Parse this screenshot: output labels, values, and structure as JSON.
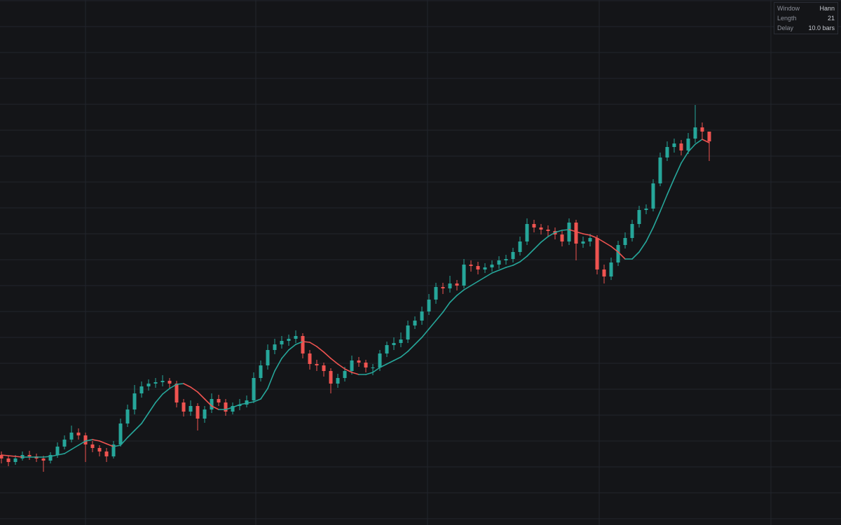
{
  "chart_data": {
    "type": "candlestick",
    "xlim": [
      -0.2,
      119.8
    ],
    "ylim": [
      0,
      750
    ],
    "xticks": [
      12,
      36.3,
      60.8,
      85.3,
      109.8
    ],
    "yticks": [
      9,
      46,
      83,
      120,
      157,
      194,
      231,
      268,
      305,
      342,
      379,
      416,
      453,
      490,
      527,
      564,
      601,
      638,
      675,
      712,
      749
    ],
    "grid": true,
    "grid_color": "#22252c",
    "up_color": "#26a69a",
    "down_color": "#ef5350",
    "open": [
      100,
      95,
      90,
      95,
      100,
      98,
      95,
      92,
      100,
      112,
      122,
      132,
      128,
      115,
      110,
      105,
      98,
      115,
      145,
      165,
      188,
      198,
      202,
      204,
      206,
      202,
      175,
      162,
      170,
      152,
      165,
      180,
      175,
      162,
      170,
      172,
      178,
      210,
      228,
      250,
      258,
      263,
      266,
      270,
      245,
      230,
      228,
      220,
      202,
      210,
      220,
      235,
      232,
      225,
      225,
      245,
      257,
      260,
      265,
      285,
      292,
      305,
      322,
      340,
      338,
      345,
      342,
      372,
      370,
      365,
      368,
      372,
      378,
      380,
      390,
      405,
      430,
      425,
      422,
      420,
      415,
      405,
      432,
      402,
      405,
      410,
      365,
      355,
      375,
      400,
      410,
      430,
      450,
      452,
      488,
      525,
      540,
      545,
      535,
      552,
      568,
      562
    ],
    "high": [
      105,
      99,
      100,
      105,
      106,
      102,
      99,
      104,
      118,
      128,
      142,
      138,
      132,
      120,
      114,
      110,
      120,
      152,
      172,
      200,
      205,
      208,
      210,
      214,
      210,
      206,
      180,
      178,
      174,
      170,
      188,
      186,
      180,
      175,
      180,
      185,
      218,
      235,
      258,
      266,
      270,
      272,
      278,
      274,
      250,
      236,
      232,
      224,
      216,
      226,
      242,
      240,
      236,
      230,
      250,
      262,
      268,
      275,
      292,
      298,
      312,
      330,
      346,
      346,
      356,
      350,
      380,
      378,
      376,
      374,
      378,
      384,
      386,
      396,
      412,
      438,
      436,
      430,
      428,
      425,
      420,
      438,
      436,
      412,
      416,
      414,
      372,
      382,
      406,
      418,
      436,
      456,
      458,
      494,
      532,
      548,
      552,
      550,
      560,
      600,
      575,
      560
    ],
    "low": [
      88,
      84,
      86,
      92,
      93,
      90,
      76,
      88,
      96,
      108,
      118,
      122,
      90,
      104,
      98,
      90,
      95,
      112,
      140,
      158,
      182,
      192,
      196,
      198,
      196,
      168,
      155,
      156,
      135,
      146,
      160,
      170,
      156,
      158,
      164,
      168,
      174,
      205,
      222,
      244,
      252,
      256,
      260,
      238,
      222,
      220,
      212,
      188,
      196,
      205,
      215,
      226,
      218,
      214,
      220,
      240,
      250,
      254,
      260,
      280,
      286,
      300,
      316,
      330,
      332,
      335,
      338,
      362,
      358,
      360,
      362,
      366,
      372,
      375,
      385,
      400,
      418,
      415,
      412,
      408,
      398,
      400,
      378,
      396,
      398,
      358,
      345,
      350,
      370,
      395,
      405,
      425,
      444,
      448,
      484,
      520,
      532,
      528,
      530,
      546,
      552,
      520
    ],
    "close": [
      95,
      90,
      95,
      100,
      98,
      95,
      92,
      100,
      112,
      122,
      132,
      128,
      115,
      110,
      105,
      98,
      115,
      145,
      165,
      188,
      198,
      202,
      204,
      206,
      202,
      175,
      162,
      170,
      152,
      165,
      180,
      175,
      162,
      170,
      172,
      178,
      210,
      228,
      250,
      258,
      263,
      266,
      270,
      245,
      230,
      228,
      220,
      202,
      210,
      220,
      235,
      232,
      225,
      225,
      245,
      257,
      260,
      265,
      285,
      292,
      305,
      322,
      340,
      338,
      345,
      342,
      372,
      370,
      365,
      368,
      372,
      378,
      380,
      390,
      405,
      430,
      425,
      422,
      420,
      415,
      405,
      432,
      402,
      405,
      410,
      365,
      355,
      375,
      400,
      410,
      430,
      450,
      452,
      488,
      525,
      540,
      545,
      535,
      552,
      568,
      562,
      548
    ],
    "line": {
      "values": [
        100,
        99,
        98,
        97,
        97,
        97,
        97,
        98,
        100,
        102,
        108,
        114,
        120,
        122,
        120,
        116,
        112,
        114,
        125,
        135,
        145,
        160,
        175,
        187,
        195,
        201,
        202,
        197,
        190,
        180,
        170,
        165,
        165,
        168,
        172,
        174,
        176,
        180,
        195,
        220,
        238,
        250,
        258,
        262,
        261,
        255,
        247,
        238,
        230,
        223,
        218,
        215,
        215,
        218,
        225,
        230,
        235,
        240,
        248,
        258,
        268,
        280,
        292,
        304,
        318,
        328,
        336,
        342,
        348,
        354,
        360,
        364,
        368,
        371,
        376,
        384,
        394,
        404,
        412,
        418,
        421,
        422,
        419,
        416,
        414,
        410,
        404,
        398,
        390,
        380,
        380,
        390,
        405,
        425,
        448,
        472,
        495,
        517,
        533,
        544,
        551,
        546
      ],
      "up_color": "#26a69a",
      "down_color": "#ef5350"
    },
    "params": [
      {
        "label": "Window",
        "value": "Hann"
      },
      {
        "label": "Length",
        "value": "21"
      },
      {
        "label": "Delay",
        "value": "10.0 bars"
      }
    ]
  }
}
